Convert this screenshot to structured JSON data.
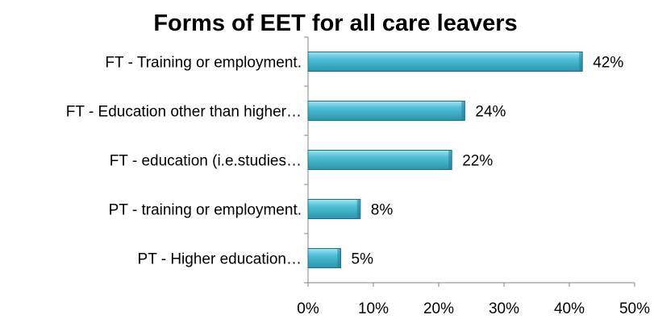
{
  "chart_data": {
    "type": "bar",
    "orientation": "horizontal",
    "title": "Forms of EET for all care leavers",
    "categories": [
      "FT - Training or employment.",
      "FT - Education other than higher…",
      "FT - education (i.e.studies…",
      "PT - training or employment.",
      "PT - Higher education…"
    ],
    "values": [
      42,
      24,
      22,
      8,
      5
    ],
    "value_labels": [
      "42%",
      "24%",
      "22%",
      "8%",
      "5%"
    ],
    "xlim": [
      0,
      50
    ],
    "xticks": [
      0,
      10,
      20,
      30,
      40,
      50
    ],
    "xtick_labels": [
      "0%",
      "10%",
      "20%",
      "30%",
      "40%",
      "50%"
    ],
    "xlabel": "",
    "ylabel": "",
    "grid": false,
    "legend": "none",
    "bar_color": "#3FB6CF",
    "bar_edge_color": "#1D6F82"
  }
}
